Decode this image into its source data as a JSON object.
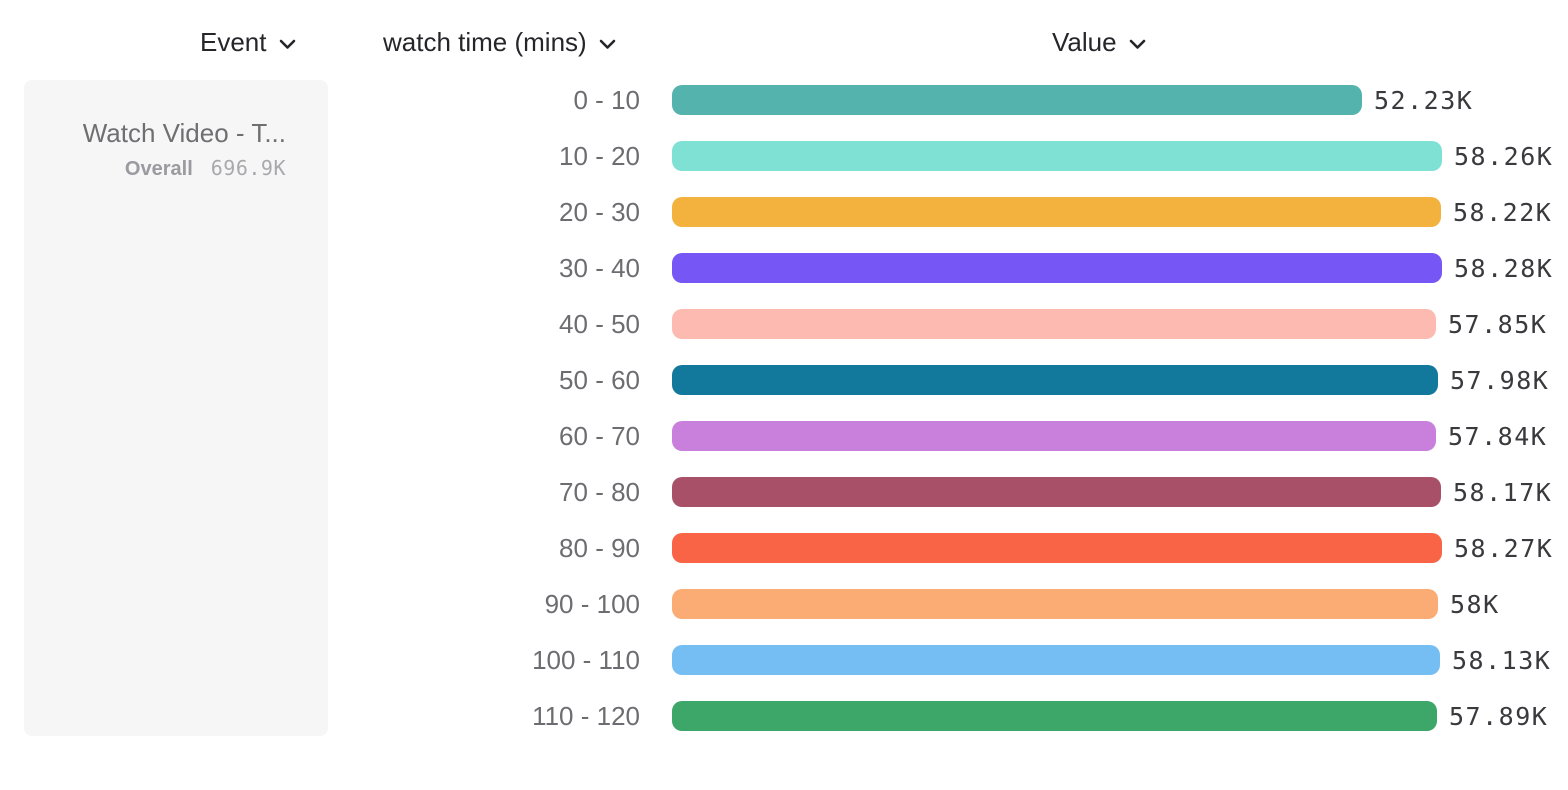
{
  "header": {
    "event_column": "Event",
    "breakdown_column": "watch time (mins)",
    "value_column": "Value"
  },
  "event_panel": {
    "event_name": "Watch Video - T...",
    "overall_label": "Overall",
    "overall_value": "696.9K"
  },
  "chart_data": {
    "type": "bar",
    "orientation": "horizontal",
    "title": "",
    "xlabel": "watch time (mins)",
    "ylabel": "Value",
    "categories": [
      "0 - 10",
      "10 - 20",
      "20 - 30",
      "30 - 40",
      "40 - 50",
      "50 - 60",
      "60 - 70",
      "70 - 80",
      "80 - 90",
      "90 - 100",
      "100 - 110",
      "110 - 120"
    ],
    "values": [
      52230,
      58260,
      58220,
      58280,
      57850,
      57980,
      57840,
      58170,
      58270,
      58000,
      58130,
      57890
    ],
    "value_labels": [
      "52.23K",
      "58.26K",
      "58.22K",
      "58.28K",
      "57.85K",
      "57.98K",
      "57.84K",
      "58.17K",
      "58.27K",
      "58K",
      "58.13K",
      "57.89K"
    ],
    "colors": [
      "#54B3AD",
      "#7FE0D4",
      "#F3B23E",
      "#7656F5",
      "#FCBAB1",
      "#12799C",
      "#C980DC",
      "#A95069",
      "#FA6446",
      "#FBAC74",
      "#75BEF3",
      "#3DA669"
    ],
    "xlim": [
      0,
      58280
    ],
    "grid": false,
    "legend": false
  }
}
